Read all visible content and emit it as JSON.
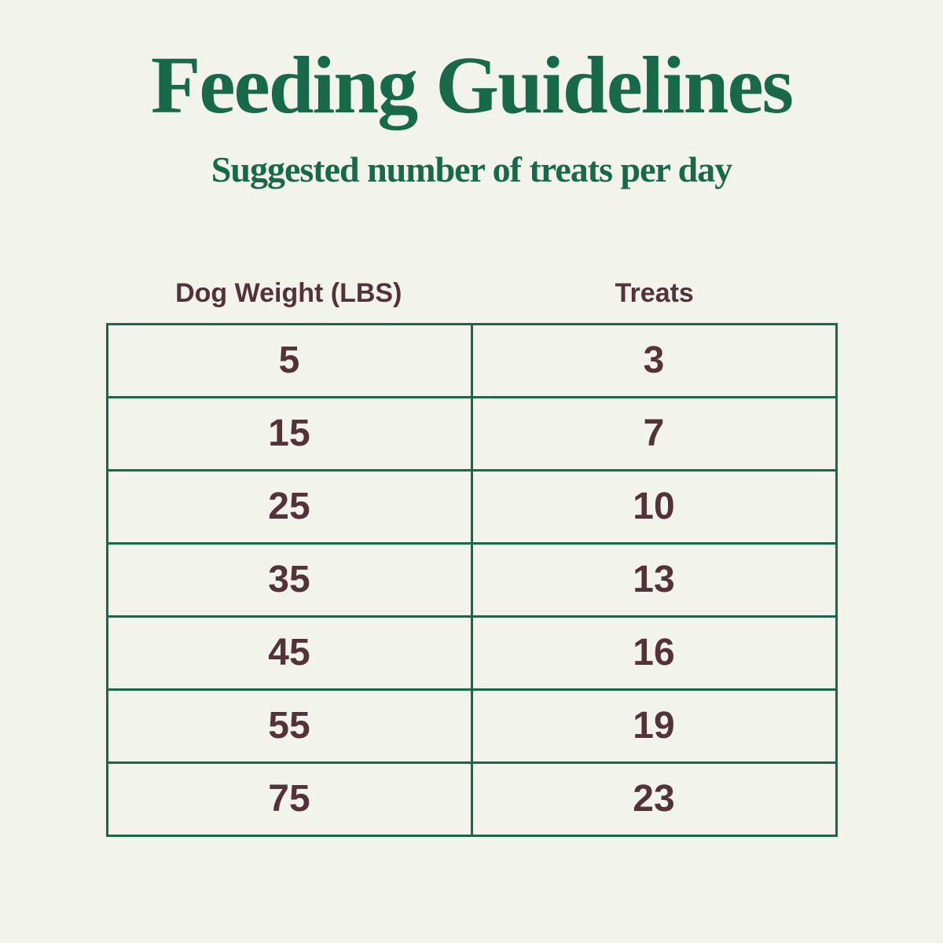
{
  "page": {
    "title": "Feeding Guidelines",
    "subtitle": "Suggested number of treats per day"
  },
  "table": {
    "headers": {
      "weight": "Dog Weight (LBS)",
      "treats": "Treats"
    },
    "rows": [
      {
        "weight": "5",
        "treats": "3"
      },
      {
        "weight": "15",
        "treats": "7"
      },
      {
        "weight": "25",
        "treats": "10"
      },
      {
        "weight": "35",
        "treats": "13"
      },
      {
        "weight": "45",
        "treats": "16"
      },
      {
        "weight": "55",
        "treats": "19"
      },
      {
        "weight": "75",
        "treats": "23"
      }
    ]
  },
  "colors": {
    "background": "#f2f3eb",
    "accent_green": "#17694a",
    "text_brown": "#533338"
  },
  "chart_data": {
    "type": "table",
    "title": "Feeding Guidelines",
    "subtitle": "Suggested number of treats per day",
    "columns": [
      "Dog Weight (LBS)",
      "Treats"
    ],
    "rows": [
      [
        5,
        3
      ],
      [
        15,
        7
      ],
      [
        25,
        10
      ],
      [
        35,
        13
      ],
      [
        45,
        16
      ],
      [
        55,
        19
      ],
      [
        75,
        23
      ]
    ],
    "legend_position": "none",
    "grid": true
  }
}
